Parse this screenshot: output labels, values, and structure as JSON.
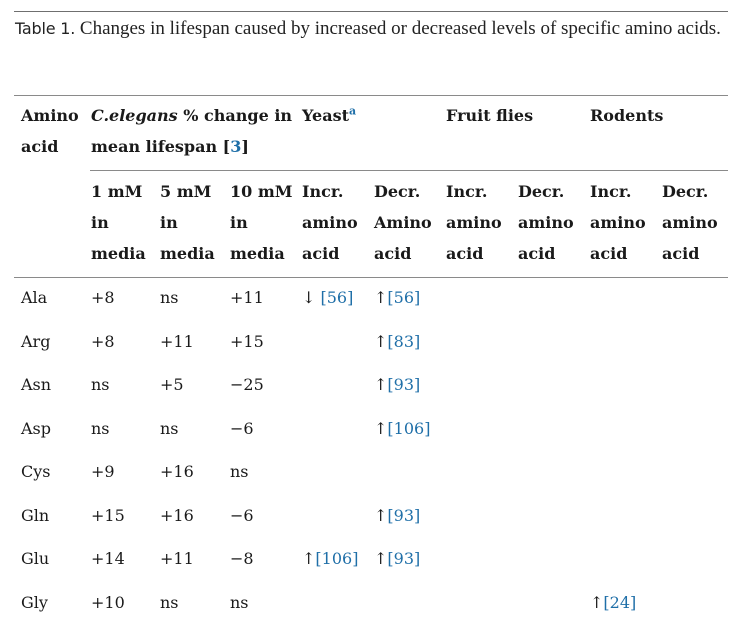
{
  "caption": {
    "label": "Table 1.",
    "text": " Changes in lifespan caused by increased or decreased levels of specific amino acids."
  },
  "header1": {
    "amino_acid": [
      "Amino",
      "acid"
    ],
    "celegans_italic": "C.elegans",
    "celegans_rest": " % change in",
    "celegans_line2_a": "mean lifespan [",
    "celegans_ref": "3",
    "celegans_line2_b": "]",
    "yeast": "Yeast",
    "yeast_sup": "a",
    "fruit_flies": "Fruit flies",
    "rodents": "Rodents"
  },
  "header2": [
    [
      "1 mM",
      "in",
      "media"
    ],
    [
      "5 mM",
      "in",
      "media"
    ],
    [
      "10 mM",
      "in",
      "media"
    ],
    [
      "Incr.",
      "amino",
      "acid"
    ],
    [
      "Decr.",
      "Amino",
      "acid"
    ],
    [
      "Incr.",
      "amino",
      "acid"
    ],
    [
      "Decr.",
      "amino",
      "acid"
    ],
    [
      "Incr.",
      "amino",
      "acid"
    ],
    [
      "Decr.",
      "amino",
      "acid"
    ]
  ],
  "rows": [
    {
      "aa": "Ala",
      "c1": "+8",
      "c2": "ns",
      "c3": "+11",
      "yi_arrow": "↓ ",
      "yi_ref": "[56]",
      "yd_arrow": "↑",
      "yd_ref": "[56]",
      "ri_arrow": "",
      "ri_ref": ""
    },
    {
      "aa": "Arg",
      "c1": "+8",
      "c2": "+11",
      "c3": "+15",
      "yi_arrow": "",
      "yi_ref": "",
      "yd_arrow": "↑",
      "yd_ref": "[83]",
      "ri_arrow": "",
      "ri_ref": ""
    },
    {
      "aa": "Asn",
      "c1": "ns",
      "c2": "+5",
      "c3": "−25",
      "yi_arrow": "",
      "yi_ref": "",
      "yd_arrow": "↑",
      "yd_ref": "[93]",
      "ri_arrow": "",
      "ri_ref": ""
    },
    {
      "aa": "Asp",
      "c1": "ns",
      "c2": "ns",
      "c3": "−6",
      "yi_arrow": "",
      "yi_ref": "",
      "yd_arrow": "↑",
      "yd_ref": "[106]",
      "ri_arrow": "",
      "ri_ref": ""
    },
    {
      "aa": "Cys",
      "c1": "+9",
      "c2": "+16",
      "c3": "ns",
      "yi_arrow": "",
      "yi_ref": "",
      "yd_arrow": "",
      "yd_ref": "",
      "ri_arrow": "",
      "ri_ref": ""
    },
    {
      "aa": "Gln",
      "c1": "+15",
      "c2": "+16",
      "c3": "−6",
      "yi_arrow": "",
      "yi_ref": "",
      "yd_arrow": "↑",
      "yd_ref": "[93]",
      "ri_arrow": "",
      "ri_ref": ""
    },
    {
      "aa": "Glu",
      "c1": "+14",
      "c2": "+11",
      "c3": "−8",
      "yi_arrow": "↑",
      "yi_ref": "[106]",
      "yd_arrow": "↑",
      "yd_ref": "[93]",
      "ri_arrow": "",
      "ri_ref": ""
    },
    {
      "aa": "Gly",
      "c1": "+10",
      "c2": "ns",
      "c3": "ns",
      "yi_arrow": "",
      "yi_ref": "",
      "yd_arrow": "",
      "yd_ref": "",
      "ri_arrow": "↑",
      "ri_ref": "[24]"
    }
  ]
}
